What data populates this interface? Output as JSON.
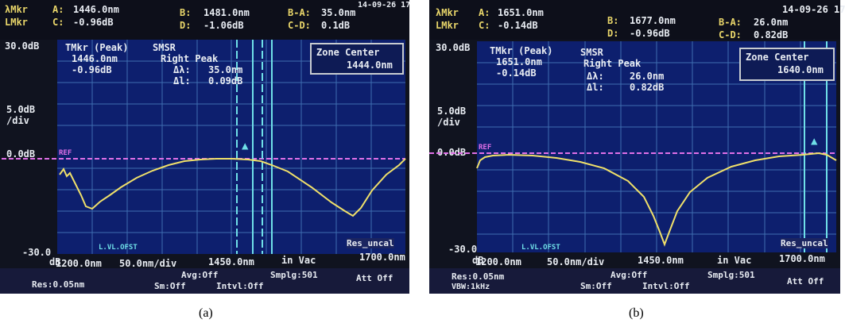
{
  "panel_a": {
    "caption": "(a)",
    "header": {
      "row1": [
        "λMkr",
        "A:",
        "1446.0nm",
        "B:",
        "1481.0nm",
        "B-A:",
        "35.0nm"
      ],
      "row2": [
        "LMkr",
        "C:",
        "-0.96dB",
        "D:",
        "-1.06dB",
        "C-D:",
        "0.1dB"
      ],
      "date": "14-09-26 17"
    },
    "y_top": "30.0dB",
    "y_div": [
      "5.0dB",
      "/div"
    ],
    "y_ref": "0.0dB",
    "y_bottom": [
      "-30.0",
      "dB"
    ],
    "ref_tag": "REF",
    "marker_box": {
      "title": "TMkr (Peak)",
      "wl": "1446.0nm",
      "level": "-0.96dB"
    },
    "smsr_box": {
      "title": "SMSR",
      "mode": "Right Peak",
      "dl_key": "Δλ:",
      "dl_val": "35.0nm",
      "dv_key": "Δl:",
      "dv_val": "0.09dB"
    },
    "zone": {
      "title": "Zone Center",
      "value": "1444.0nm"
    },
    "x_labels": [
      "1200.0nm",
      "50.0nm/div",
      "1450.0nm",
      "in Vac",
      "1700.0nm"
    ],
    "lvl_tag": "L.VL.OFST",
    "res_tag": "Res_uncal",
    "footer": {
      "res": "Res:0.05nm",
      "avg": "Avg:Off",
      "smplg": "Smplg:501",
      "sm": "Sm:Off",
      "intvl": "Intvl:Off",
      "att": "Att Off"
    }
  },
  "panel_b": {
    "caption": "(b)",
    "header": {
      "row1": [
        "λMkr",
        "A:",
        "1651.0nm",
        "B:",
        "1677.0nm",
        "B-A:",
        "26.0nm"
      ],
      "row2": [
        "LMkr",
        "C:",
        "-0.14dB",
        "D:",
        "-0.96dB",
        "C-D:",
        "0.82dB"
      ],
      "date": "14-09-26 17"
    },
    "y_top": "30.0dB",
    "y_div": [
      "5.0dB",
      "/div"
    ],
    "y_ref": "0.0dB",
    "y_bottom": [
      "-30.0",
      "dB"
    ],
    "ref_tag": "REF",
    "marker_box": {
      "title": "TMkr (Peak)",
      "wl": "1651.0nm",
      "level": "-0.14dB"
    },
    "smsr_box": {
      "title": "SMSR",
      "mode": "Right Peak",
      "dl_key": "Δλ:",
      "dl_val": "26.0nm",
      "dv_key": "Δl:",
      "dv_val": "0.82dB"
    },
    "zone": {
      "title": "Zone Center",
      "value": "1640.0nm"
    },
    "x_labels": [
      "1200.0nm",
      "50.0nm/div",
      "1450.0nm",
      "in Vac",
      "1700.0nm"
    ],
    "lvl_tag": "L.VL.OFST",
    "res_tag": "Res_uncal",
    "footer": {
      "res": "Res:0.05nm",
      "avg": "Avg:Off",
      "smplg": "Smplg:501",
      "sm": "Sm:Off",
      "intvl": "Intvl:Off",
      "att": "Att Off",
      "vbw": "VBW:1kHz"
    }
  },
  "colors": {
    "screen": "#0d1f6e",
    "grid": "#3f6db0",
    "trace": "#f0e06a",
    "ref_line": "#e070e8",
    "marker": "#6fe0e8",
    "header_text": "#e9d66a"
  }
}
